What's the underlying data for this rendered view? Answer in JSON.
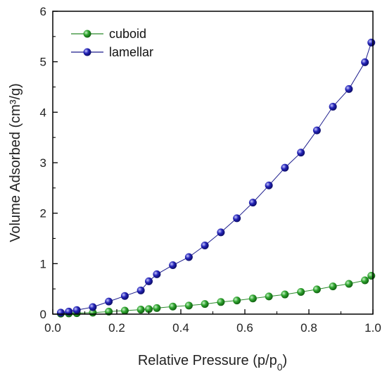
{
  "chart_data": {
    "type": "scatter",
    "title": "",
    "xlabel": "Relative Pressure (p/p",
    "xlabel_subscript": "0",
    "xlabel_suffix": ")",
    "ylabel": "Volume Adsorbed (cm³/g)",
    "xlim": [
      0.0,
      1.0
    ],
    "ylim": [
      0,
      6
    ],
    "x_ticks": [
      "0.0",
      "0.2",
      "0.4",
      "0.6",
      "0.8",
      "1.0"
    ],
    "y_ticks": [
      "0",
      "1",
      "2",
      "3",
      "4",
      "5",
      "6"
    ],
    "grid": false,
    "legend_position": "top-left",
    "series": [
      {
        "name": "cuboid",
        "color": "#2e9a2e",
        "line_color": "#2a8a2a",
        "points": [
          [
            0.025,
            0.01
          ],
          [
            0.05,
            0.015
          ],
          [
            0.075,
            0.02
          ],
          [
            0.125,
            0.03
          ],
          [
            0.175,
            0.05
          ],
          [
            0.225,
            0.07
          ],
          [
            0.275,
            0.09
          ],
          [
            0.3,
            0.1
          ],
          [
            0.325,
            0.12
          ],
          [
            0.375,
            0.15
          ],
          [
            0.425,
            0.17
          ],
          [
            0.475,
            0.2
          ],
          [
            0.525,
            0.24
          ],
          [
            0.575,
            0.27
          ],
          [
            0.625,
            0.31
          ],
          [
            0.675,
            0.35
          ],
          [
            0.725,
            0.39
          ],
          [
            0.775,
            0.44
          ],
          [
            0.825,
            0.49
          ],
          [
            0.875,
            0.55
          ],
          [
            0.925,
            0.6
          ],
          [
            0.975,
            0.67
          ],
          [
            0.995,
            0.76
          ]
        ]
      },
      {
        "name": "lamellar",
        "color": "#1c1ca6",
        "line_color": "#1c1c8c",
        "points": [
          [
            0.025,
            0.03
          ],
          [
            0.05,
            0.05
          ],
          [
            0.075,
            0.08
          ],
          [
            0.125,
            0.14
          ],
          [
            0.175,
            0.25
          ],
          [
            0.225,
            0.36
          ],
          [
            0.275,
            0.47
          ],
          [
            0.3,
            0.65
          ],
          [
            0.325,
            0.79
          ],
          [
            0.375,
            0.97
          ],
          [
            0.425,
            1.13
          ],
          [
            0.475,
            1.36
          ],
          [
            0.525,
            1.62
          ],
          [
            0.575,
            1.9
          ],
          [
            0.625,
            2.21
          ],
          [
            0.675,
            2.55
          ],
          [
            0.725,
            2.9
          ],
          [
            0.775,
            3.2
          ],
          [
            0.825,
            3.64
          ],
          [
            0.875,
            4.11
          ],
          [
            0.925,
            4.46
          ],
          [
            0.975,
            4.99
          ],
          [
            0.995,
            5.38
          ]
        ]
      }
    ]
  }
}
